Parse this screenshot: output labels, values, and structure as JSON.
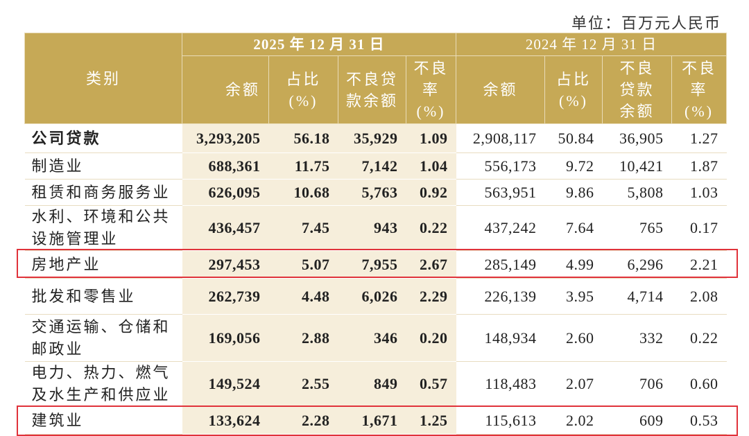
{
  "unit": "单位：百万元人民币",
  "header": {
    "category": "类别",
    "years": [
      "2025 年 12 月 31 日",
      "2024 年 12 月 31 日"
    ],
    "columns": [
      "余额",
      "占比 (%)",
      "不良贷款余额",
      "不良率 (%)",
      "余额",
      "占比 (%)",
      "不良贷款余额",
      "不良率 (%)"
    ]
  },
  "table": {
    "rows": [
      [
        "公司贷款",
        "3,293,205",
        "56.18",
        "35,929",
        "1.09",
        "2,908,117",
        "50.84",
        "36,905",
        "1.27"
      ],
      [
        "制造业",
        "688,361",
        "11.75",
        "7,142",
        "1.04",
        "556,173",
        "9.72",
        "10,421",
        "1.87"
      ],
      [
        "租赁和商务服务业",
        "626,095",
        "10.68",
        "5,763",
        "0.92",
        "563,951",
        "9.86",
        "5,808",
        "1.03"
      ],
      [
        "水利、环境和公共设施管理业",
        "436,457",
        "7.45",
        "943",
        "0.22",
        "437,242",
        "7.64",
        "765",
        "0.17"
      ],
      [
        "房地产业",
        "297,453",
        "5.07",
        "7,955",
        "2.67",
        "285,149",
        "4.99",
        "6,296",
        "2.21"
      ],
      [
        "批发和零售业",
        "262,739",
        "4.48",
        "6,026",
        "2.29",
        "226,139",
        "3.95",
        "4,714",
        "2.08"
      ],
      [
        "交通运输、仓储和邮政业",
        "169,056",
        "2.88",
        "346",
        "0.20",
        "148,934",
        "2.60",
        "332",
        "0.22"
      ],
      [
        "电力、热力、燃气及水生产和供应业",
        "149,524",
        "2.55",
        "849",
        "0.57",
        "118,483",
        "2.07",
        "706",
        "0.60"
      ],
      [
        "建筑业",
        "133,624",
        "2.28",
        "1,671",
        "1.25",
        "115,613",
        "2.02",
        "609",
        "0.53"
      ]
    ]
  }
}
